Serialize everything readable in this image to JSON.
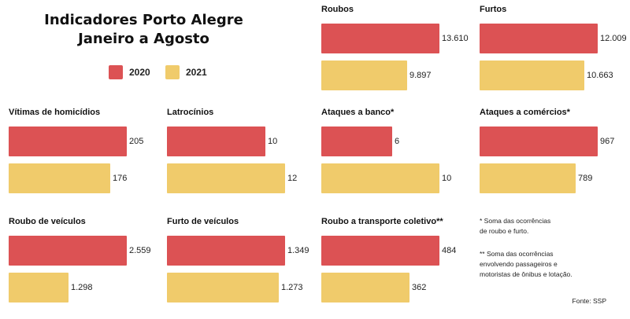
{
  "title_line1": "Indicadores Porto Alegre",
  "title_line2": "Janeiro a Agosto",
  "legend": [
    {
      "label": "2020",
      "color": "#dc5254"
    },
    {
      "label": "2021",
      "color": "#f0cb6b"
    }
  ],
  "chart_data": [
    {
      "type": "bar",
      "title": "Roubos",
      "categories": [
        "2020",
        "2021"
      ],
      "values": [
        13610,
        9897
      ],
      "labels": [
        "13.610",
        "9.897"
      ]
    },
    {
      "type": "bar",
      "title": "Furtos",
      "categories": [
        "2020",
        "2021"
      ],
      "values": [
        12009,
        10663
      ],
      "labels": [
        "12.009",
        "10.663"
      ]
    },
    {
      "type": "bar",
      "title": "Vítimas de homicídios",
      "categories": [
        "2020",
        "2021"
      ],
      "values": [
        205,
        176
      ],
      "labels": [
        "205",
        "176"
      ]
    },
    {
      "type": "bar",
      "title": "Latrocínios",
      "categories": [
        "2020",
        "2021"
      ],
      "values": [
        10,
        12
      ],
      "labels": [
        "10",
        "12"
      ]
    },
    {
      "type": "bar",
      "title": "Ataques a banco*",
      "categories": [
        "2020",
        "2021"
      ],
      "values": [
        6,
        10
      ],
      "labels": [
        "6",
        "10"
      ]
    },
    {
      "type": "bar",
      "title": "Ataques a comércios*",
      "categories": [
        "2020",
        "2021"
      ],
      "values": [
        967,
        789
      ],
      "labels": [
        "967",
        "789"
      ]
    },
    {
      "type": "bar",
      "title": "Roubo de veículos",
      "categories": [
        "2020",
        "2021"
      ],
      "values": [
        2559,
        1298
      ],
      "labels": [
        "2.559",
        "1.298"
      ]
    },
    {
      "type": "bar",
      "title": "Furto de veículos",
      "categories": [
        "2020",
        "2021"
      ],
      "values": [
        1349,
        1273
      ],
      "labels": [
        "1.349",
        "1.273"
      ]
    },
    {
      "type": "bar",
      "title": "Roubo a transporte coletivo**",
      "categories": [
        "2020",
        "2021"
      ],
      "values": [
        484,
        362
      ],
      "labels": [
        "484",
        "362"
      ]
    }
  ],
  "notes": [
    [
      "* Soma das ocorrências",
      "de roubo e furto."
    ],
    [
      "** Soma das ocorrências",
      "envolvendo passageiros e",
      "motoristas de ônibus e lotação."
    ]
  ],
  "source": "Fonte: SSP"
}
